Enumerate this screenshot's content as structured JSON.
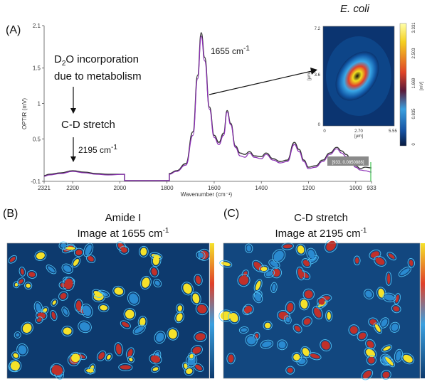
{
  "panel_a": {
    "letter": "(A)",
    "d2o_line1_pre": "D",
    "d2o_line1_sub": "2",
    "d2o_line1_post": "O incorporation",
    "d2o_line2": "due to metabolism",
    "cd_label": "C-D stretch",
    "peak_2195_text": "2195 cm",
    "peak_2195_sup": "-1",
    "peak_1655_text": "1655 cm",
    "peak_1655_sup": "-1",
    "cursor_readout": "[933, 0.0850886]",
    "ecoli_label": "E. coli",
    "inset_y_ticks": [
      "7.2",
      "3.6",
      "0"
    ],
    "inset_x_ticks": [
      "0",
      "2.70",
      "5.55"
    ],
    "inset_x_unit": "[µm]",
    "inset_y_unit": "[µm]",
    "colorbar_ticks": [
      "3.331",
      "2.503",
      "1.669",
      "0.835",
      "0"
    ],
    "colorbar_title": "[mV]"
  },
  "chart_data": {
    "type": "line",
    "title": "",
    "xlabel": "Wavenumber (cm⁻¹)",
    "ylabel": "OPTIR (mV)",
    "xlim": [
      2321,
      933
    ],
    "ylim": [
      -0.1,
      2.1
    ],
    "x_ticks": [
      "2321",
      "2200",
      "2000",
      "1800",
      "1600",
      "1400",
      "1200",
      "1000",
      "933"
    ],
    "y_ticks": [
      "2.1",
      "1.5",
      "1",
      "0.5",
      "-0.1"
    ],
    "gap": [
      1980,
      1790
    ],
    "series": [
      {
        "color": "#333333",
        "x": [
          2321,
          2300,
          2250,
          2200,
          2150,
          2100,
          2050,
          1980,
          1790,
          1760,
          1720,
          1690,
          1670,
          1655,
          1640,
          1620,
          1600,
          1580,
          1560,
          1545,
          1530,
          1510,
          1490,
          1470,
          1450,
          1430,
          1400,
          1380,
          1350,
          1320,
          1290,
          1260,
          1240,
          1220,
          1200,
          1170,
          1140,
          1110,
          1080,
          1060,
          1040,
          1020,
          1000,
          980,
          960,
          933
        ],
        "y": [
          -0.02,
          0.0,
          0.02,
          0.05,
          0.03,
          0.01,
          0.0,
          0.0,
          0.01,
          0.05,
          0.15,
          0.6,
          1.4,
          2.0,
          1.65,
          0.95,
          0.55,
          0.45,
          0.58,
          0.9,
          0.72,
          0.4,
          0.3,
          0.28,
          0.32,
          0.26,
          0.25,
          0.3,
          0.22,
          0.18,
          0.2,
          0.45,
          0.35,
          0.2,
          0.1,
          0.12,
          0.2,
          0.3,
          0.38,
          0.33,
          0.28,
          0.2,
          0.12,
          0.08,
          0.1,
          0.09
        ]
      },
      {
        "color": "#8b2db5",
        "x": [
          2321,
          2300,
          2250,
          2200,
          2150,
          2100,
          2050,
          1980,
          1790,
          1760,
          1720,
          1690,
          1670,
          1655,
          1640,
          1620,
          1600,
          1580,
          1560,
          1545,
          1530,
          1510,
          1490,
          1470,
          1450,
          1430,
          1400,
          1380,
          1350,
          1320,
          1290,
          1260,
          1240,
          1220,
          1200,
          1170,
          1140,
          1110,
          1080,
          1060,
          1040,
          1020,
          1000,
          980,
          960,
          933
        ],
        "y": [
          -0.03,
          -0.01,
          0.01,
          0.04,
          0.02,
          0.0,
          -0.01,
          0.0,
          0.0,
          0.04,
          0.13,
          0.55,
          1.35,
          1.95,
          1.6,
          0.92,
          0.52,
          0.42,
          0.55,
          0.88,
          0.7,
          0.38,
          0.26,
          0.24,
          0.3,
          0.24,
          0.22,
          0.28,
          0.2,
          0.16,
          0.18,
          0.42,
          0.32,
          0.18,
          0.08,
          0.1,
          0.18,
          0.28,
          0.36,
          0.3,
          0.25,
          0.18,
          0.1,
          0.06,
          0.05,
          0.03
        ]
      }
    ]
  },
  "panel_b": {
    "letter": "(B)",
    "title_line1": "Amide I",
    "title_line2_text": "Image at 1655 cm",
    "title_line2_sup": "-1"
  },
  "panel_c": {
    "letter": "(C)",
    "title_line1": "C-D stretch",
    "title_line2_text": "Image at 2195 cm",
    "title_line2_sup": "-1"
  },
  "colors": {
    "map_bg": "#0d3a6e",
    "map_blob_edge": "#4fc3f7",
    "map_hot": "#f5e22a",
    "map_mid": "#c0302a",
    "line_black": "#333333",
    "line_purple": "#8b2db5"
  }
}
